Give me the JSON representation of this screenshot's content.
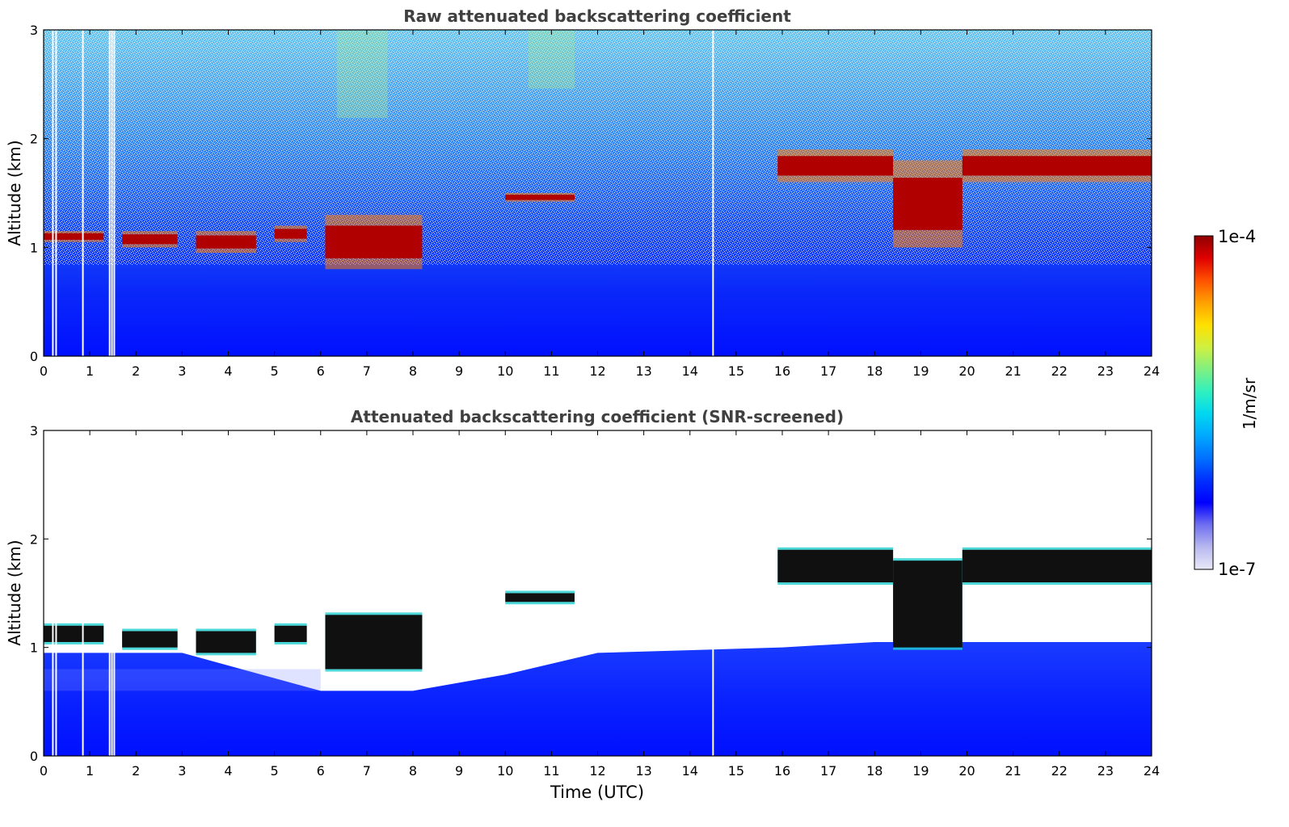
{
  "figure": {
    "shared_xlabel": "Time (UTC)"
  },
  "colorbar": {
    "label": "1/m/sr",
    "max_label": "1e-4",
    "min_label": "1e-7",
    "scale": "log",
    "range": [
      1e-07,
      0.0001
    ],
    "colormap": [
      "#e8e8f8",
      "#b8b8f0",
      "#7070f0",
      "#0000ff",
      "#0030ff",
      "#0070ff",
      "#00a8ff",
      "#00d8f0",
      "#30f0c0",
      "#80f080",
      "#d0f040",
      "#ffe000",
      "#ffa000",
      "#ff5000",
      "#e00000",
      "#900000"
    ]
  },
  "chart_data": [
    {
      "type": "heatmap",
      "title": "Raw attenuated backscattering coefficient",
      "xlabel": "",
      "ylabel": "Altitude (km)",
      "xlim": [
        0,
        24
      ],
      "ylim": [
        0,
        3
      ],
      "xticks": [
        "0",
        "1",
        "2",
        "3",
        "4",
        "5",
        "6",
        "7",
        "8",
        "9",
        "10",
        "11",
        "12",
        "13",
        "14",
        "15",
        "16",
        "17",
        "18",
        "19",
        "20",
        "21",
        "22",
        "23",
        "24"
      ],
      "yticks": [
        "0",
        "1",
        "2",
        "3"
      ],
      "data_gaps_hours": [
        0.2,
        0.27,
        0.85,
        1.43,
        1.48,
        1.53,
        14.5
      ],
      "cloud_layers": [
        {
          "x": [
            0.0,
            1.3
          ],
          "y": [
            1.05,
            1.15
          ]
        },
        {
          "x": [
            1.7,
            2.9
          ],
          "y": [
            1.0,
            1.15
          ]
        },
        {
          "x": [
            3.3,
            4.6
          ],
          "y": [
            0.95,
            1.15
          ]
        },
        {
          "x": [
            5.0,
            5.7
          ],
          "y": [
            1.05,
            1.2
          ]
        },
        {
          "x": [
            6.1,
            8.2
          ],
          "y": [
            0.8,
            1.3
          ]
        },
        {
          "x": [
            10.0,
            11.5
          ],
          "y": [
            1.42,
            1.5
          ]
        },
        {
          "x": [
            15.9,
            18.4
          ],
          "y": [
            1.6,
            1.9
          ]
        },
        {
          "x": [
            18.4,
            19.9
          ],
          "y": [
            1.0,
            1.8
          ]
        },
        {
          "x": [
            19.9,
            24.0
          ],
          "y": [
            1.6,
            1.9
          ]
        }
      ]
    },
    {
      "type": "heatmap",
      "title": "Attenuated backscattering coefficient (SNR-screened)",
      "xlabel": "Time (UTC)",
      "ylabel": "Altitude (km)",
      "xlim": [
        0,
        24
      ],
      "ylim": [
        0,
        3
      ],
      "xticks": [
        "0",
        "1",
        "2",
        "3",
        "4",
        "5",
        "6",
        "7",
        "8",
        "9",
        "10",
        "11",
        "12",
        "13",
        "14",
        "15",
        "16",
        "17",
        "18",
        "19",
        "20",
        "21",
        "22",
        "23",
        "24"
      ],
      "yticks": [
        "0",
        "1",
        "2",
        "3"
      ],
      "data_gaps_hours": [
        0.2,
        0.27,
        0.85,
        1.43,
        1.48,
        1.53,
        14.5
      ],
      "screened_boundary_layer_top_km": [
        [
          0,
          0.95
        ],
        [
          3,
          0.95
        ],
        [
          6,
          0.6
        ],
        [
          8,
          0.6
        ],
        [
          10,
          0.75
        ],
        [
          12,
          0.95
        ],
        [
          16,
          1.0
        ],
        [
          18,
          1.05
        ],
        [
          24,
          1.05
        ]
      ],
      "cloud_layers": [
        {
          "x": [
            0.0,
            1.3
          ],
          "y": [
            1.05,
            1.2
          ]
        },
        {
          "x": [
            1.7,
            2.9
          ],
          "y": [
            1.0,
            1.15
          ]
        },
        {
          "x": [
            3.3,
            4.6
          ],
          "y": [
            0.95,
            1.15
          ]
        },
        {
          "x": [
            5.0,
            5.7
          ],
          "y": [
            1.05,
            1.2
          ]
        },
        {
          "x": [
            6.1,
            8.2
          ],
          "y": [
            0.8,
            1.3
          ]
        },
        {
          "x": [
            10.0,
            11.5
          ],
          "y": [
            1.42,
            1.5
          ]
        },
        {
          "x": [
            15.9,
            18.4
          ],
          "y": [
            1.6,
            1.9
          ]
        },
        {
          "x": [
            18.4,
            19.9
          ],
          "y": [
            1.0,
            1.8
          ]
        },
        {
          "x": [
            19.9,
            24.0
          ],
          "y": [
            1.6,
            1.9
          ]
        }
      ]
    }
  ]
}
